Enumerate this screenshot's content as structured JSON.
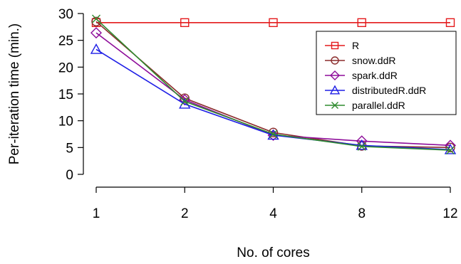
{
  "chart_data": {
    "type": "line",
    "title": "",
    "xlabel": "No. of cores",
    "ylabel": "Per-iteration time (min.)",
    "categories": [
      "1",
      "2",
      "4",
      "8",
      "12"
    ],
    "ylim": [
      0,
      30
    ],
    "yticks": [
      0,
      5,
      10,
      15,
      20,
      25,
      30
    ],
    "grid": false,
    "legend_position": "top-right",
    "series": [
      {
        "name": "R",
        "color": "#e41a1c",
        "marker": "square",
        "values": [
          28.3,
          28.3,
          28.3,
          28.3,
          28.3
        ]
      },
      {
        "name": "snow.ddR",
        "color": "#8b2c2c",
        "marker": "circle",
        "values": [
          28.5,
          14.2,
          7.8,
          5.3,
          5.0
        ]
      },
      {
        "name": "spark.ddR",
        "color": "#8e0c9a",
        "marker": "diamond",
        "values": [
          26.4,
          13.9,
          7.3,
          6.2,
          5.4
        ]
      },
      {
        "name": "distributedR.ddR",
        "color": "#1f1fe6",
        "marker": "triangle",
        "values": [
          23.3,
          13.1,
          7.3,
          5.4,
          4.6
        ]
      },
      {
        "name": "parallel.ddR",
        "color": "#2e8b2e",
        "marker": "x",
        "values": [
          29.0,
          13.6,
          7.5,
          5.2,
          4.5
        ]
      }
    ]
  }
}
